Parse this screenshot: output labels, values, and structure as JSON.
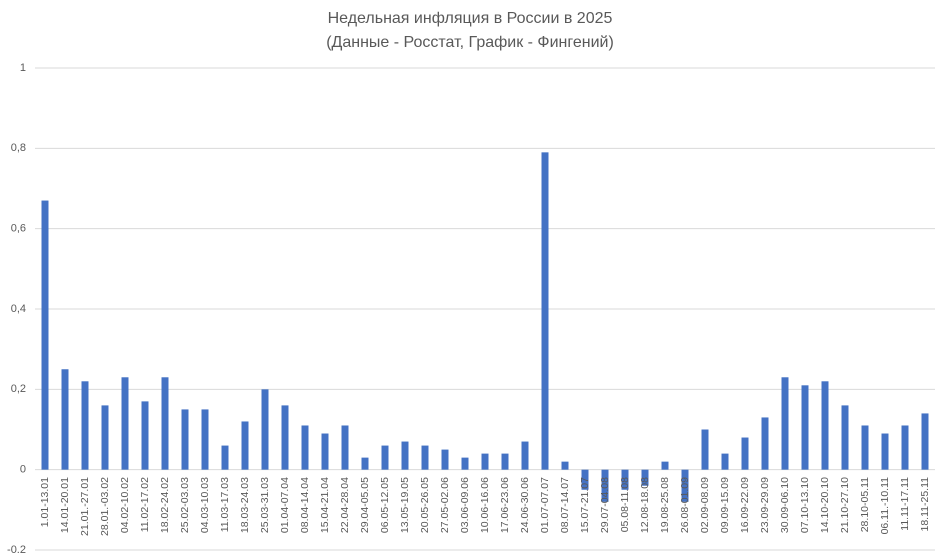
{
  "chart_data": {
    "type": "bar",
    "title": "Недельная инфляция в России в 2025",
    "subtitle": "(Данные - Росстат, График - Фингений)",
    "categories": [
      "1.01-13.01",
      "14.01-20.01",
      "21.01.-27.01",
      "28.01.-03.02",
      "04.02-10.02",
      "11.02-17.02",
      "18.02-24.02",
      "25.02-03.03",
      "04.03-10.03",
      "11.03-17.03",
      "18.03-24.03",
      "25.03-31.03",
      "01.04-07.04",
      "08.04-14.04",
      "15.04-21.04",
      "22.04-28.04",
      "29.04-05.05",
      "06.05-12.05",
      "13.05-19.05",
      "20.05-26.05",
      "27.05-02.06",
      "03.06-09.06",
      "10.06-16.06",
      "17.06-23.06",
      "24.06-30.06",
      "01.07-07.07",
      "08.07-14.07",
      "15.07-21.07",
      "29.07-04.08",
      "05.08-11.08",
      "12.08-18.08",
      "19.08-25.08",
      "26.08-01.09",
      "02.09-08.09",
      "09.09-15.09",
      "16.09-22.09",
      "23.09-29.09",
      "30.09-06.10",
      "07.10-13.10",
      "14.10-20.10",
      "21.10-27.10",
      "28.10-05.11",
      "06.11.-10.11",
      "11.11-17.11",
      "18.11-25.11"
    ],
    "values": [
      0.67,
      0.25,
      0.22,
      0.16,
      0.23,
      0.17,
      0.23,
      0.15,
      0.15,
      0.06,
      0.12,
      0.2,
      0.16,
      0.11,
      0.09,
      0.11,
      0.03,
      0.06,
      0.07,
      0.06,
      0.05,
      0.03,
      0.04,
      0.04,
      0.07,
      0.79,
      0.02,
      -0.05,
      -0.08,
      -0.05,
      -0.04,
      0.02,
      -0.08,
      0.1,
      0.04,
      0.08,
      0.13,
      0.23,
      0.21,
      0.22,
      0.16,
      0.11,
      0.09,
      0.11,
      0.14
    ],
    "color": "#4472c4",
    "ylim": [
      -0.2,
      1
    ],
    "yticks": [
      -0.2,
      0,
      {
        "value": 0.2,
        "label": "0,2"
      },
      {
        "value": 0.4,
        "label": "0,4"
      },
      {
        "value": 0.6,
        "label": "0,6"
      },
      {
        "value": 0.8,
        "label": "0,8"
      },
      1
    ],
    "grid": true
  }
}
